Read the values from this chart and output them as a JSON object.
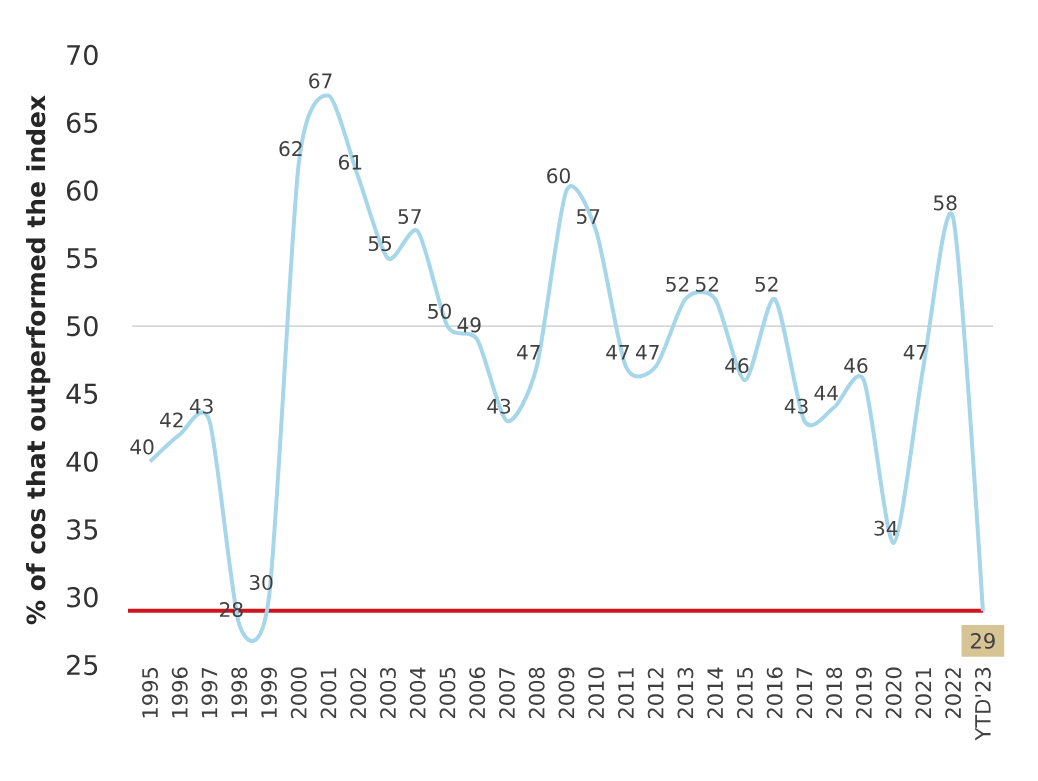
{
  "chart_data": {
    "type": "line",
    "ylabel": "% of cos that outperformed the index",
    "categories": [
      "1995",
      "1996",
      "1997",
      "1998",
      "1999",
      "2000",
      "2001",
      "2002",
      "2003",
      "2004",
      "2005",
      "2006",
      "2007",
      "2008",
      "2009",
      "2010",
      "2011",
      "2012",
      "2013",
      "2014",
      "2015",
      "2016",
      "2017",
      "2018",
      "2019",
      "2020",
      "2021",
      "2022",
      "YTD'23"
    ],
    "series": [
      {
        "color": "#a6d6ea",
        "values": [
          40,
          42,
          43,
          28,
          30,
          62,
          67,
          61,
          55,
          57,
          50,
          49,
          43,
          47,
          60,
          57,
          47,
          47,
          52,
          52,
          46,
          52,
          43,
          44,
          46,
          34,
          47,
          58,
          29
        ]
      }
    ],
    "ylim": [
      25,
      70
    ],
    "yticks": [
      25,
      30,
      35,
      40,
      45,
      50,
      55,
      60,
      65,
      70
    ],
    "ref_lines": [
      {
        "axis": "y",
        "value": 50,
        "color": "#c8c8c8"
      },
      {
        "axis": "y",
        "value": 29,
        "color": "#d0141c"
      }
    ],
    "data_labels": true,
    "grid": false,
    "marker": "none",
    "line_style": "solid"
  }
}
